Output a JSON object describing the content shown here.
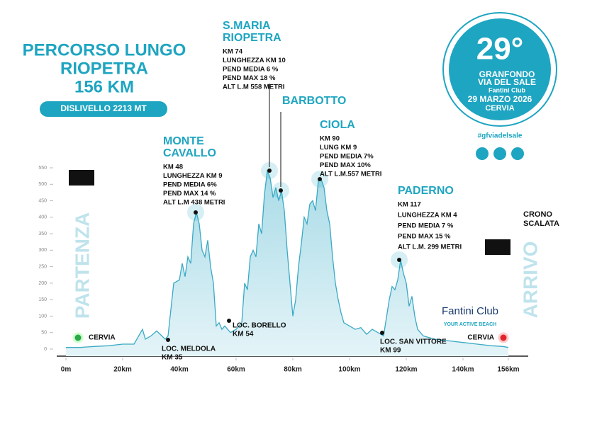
{
  "chart_data": {
    "type": "area",
    "title": [
      "PERCORSO LUNGO",
      "RIOPETRA",
      "156 KM"
    ],
    "subtitle": "DISLIVELLO  2213 MT",
    "logo": {
      "edition": "29°",
      "name": [
        "GRANFONDO",
        "VIA DEL SALE",
        "Fantini Club"
      ],
      "date": "29 MARZO 2026",
      "place": "CERVIA"
    },
    "hashtag": "#gfviadelsale",
    "start": "PARTENZA",
    "finish": "ARRIVO",
    "start_town": "CERVIA",
    "finish_town": "CERVIA",
    "crono": [
      "CRONO",
      "SCALATA"
    ],
    "sponsor": [
      "Fantini Club",
      "YOUR ACTIVE BEACH"
    ],
    "places": [
      [
        "LOC. MELDOLA",
        "KM 35"
      ],
      [
        "LOC. BORELLO",
        "KM 54"
      ],
      [
        "LOC. SAN VITTORE",
        "KM 99"
      ]
    ],
    "annotations": [
      {
        "title": [
          "MONTE",
          "CAVALLO"
        ],
        "details": [
          "KM 48",
          "LUNGHEZZA KM 9",
          "PEND MEDIA 6%",
          "PEND MAX 14 %",
          "ALT L.M 438 METRI"
        ]
      },
      {
        "title": [
          "S.MARIA",
          "RIOPETRA"
        ],
        "details": [
          "KM 74",
          "LUNGHEZZA KM  10",
          "PEND MEDIA 6 %",
          "PEND MAX 18 %",
          "ALT L.M 558 METRI"
        ]
      },
      {
        "title": [
          "BARBOTTO"
        ],
        "details": []
      },
      {
        "title": [
          "CIOLA"
        ],
        "details": [
          "KM 90",
          "LUNG KM 9",
          "PEND MEDIA 7%",
          "PEND MAX 10%",
          "ALT L.M.557 METRI"
        ]
      },
      {
        "title": [
          "PADERNO"
        ],
        "details": [
          "KM 117",
          "LUNGHEZZA KM 4",
          "PEND MEDIA 7 %",
          "PEND MAX 15  %",
          "ALT L.M. 299 METRI"
        ]
      }
    ],
    "x": [
      0,
      5,
      10,
      15,
      20,
      24,
      27,
      28,
      30,
      32,
      35,
      36,
      38,
      40,
      41,
      42,
      43,
      44,
      45,
      46,
      47,
      48,
      49,
      50,
      51,
      52,
      53,
      54,
      55,
      56,
      58,
      60,
      62,
      63,
      64,
      65,
      66,
      67,
      68,
      69,
      70,
      71,
      72,
      73,
      74,
      75,
      76,
      77,
      78,
      79,
      80,
      81,
      82,
      83,
      84,
      85,
      86,
      87,
      88,
      89,
      90,
      91,
      92,
      93,
      94,
      95,
      96,
      97,
      98,
      100,
      102,
      104,
      106,
      108,
      110,
      112,
      114,
      115,
      116,
      117,
      118,
      119,
      120,
      121,
      122,
      123,
      124,
      126,
      130,
      135,
      140,
      145,
      150,
      154,
      156
    ],
    "values": [
      5,
      5,
      8,
      10,
      15,
      15,
      60,
      30,
      40,
      55,
      30,
      40,
      200,
      210,
      260,
      220,
      280,
      260,
      380,
      415,
      380,
      300,
      280,
      330,
      250,
      200,
      70,
      80,
      60,
      70,
      50,
      60,
      80,
      200,
      180,
      280,
      300,
      280,
      380,
      350,
      470,
      540,
      520,
      460,
      490,
      450,
      480,
      420,
      300,
      200,
      100,
      150,
      250,
      320,
      400,
      380,
      440,
      450,
      420,
      510,
      515,
      490,
      420,
      380,
      280,
      200,
      150,
      110,
      80,
      70,
      60,
      65,
      45,
      60,
      50,
      40,
      150,
      190,
      180,
      210,
      270,
      230,
      200,
      130,
      160,
      100,
      60,
      40,
      30,
      25,
      20,
      15,
      10,
      8,
      5
    ],
    "color": "#3aa9c4",
    "xlim": [
      0,
      156
    ],
    "xticks": [
      {
        "value": 0,
        "label": "0m"
      },
      {
        "value": 20,
        "label": "20km"
      },
      {
        "value": 40,
        "label": "40km"
      },
      {
        "value": 60,
        "label": "60km"
      },
      {
        "value": 80,
        "label": "80km"
      },
      {
        "value": 100,
        "label": "100km"
      },
      {
        "value": 120,
        "label": "120km"
      },
      {
        "value": 140,
        "label": "140km"
      },
      {
        "value": 156,
        "label": "156km"
      }
    ],
    "ylim": [
      0,
      550
    ],
    "yticks": [
      0,
      50,
      100,
      150,
      200,
      250,
      300,
      350,
      400,
      450,
      500,
      550
    ]
  }
}
